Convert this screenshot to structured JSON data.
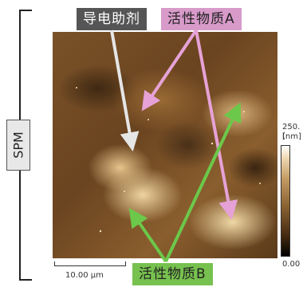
{
  "side_label": "SPM",
  "labels": {
    "conductive_agent": "导电助剂",
    "active_a": "活性物质A",
    "active_b": "活性物质B"
  },
  "colorbar": {
    "max_text": "250.(",
    "unit_text": "[nm]",
    "min_text": "0.00"
  },
  "scale_bar": {
    "text": "10.00 μm"
  },
  "colors": {
    "conductive_arrow": "#e6e6e6",
    "active_a_arrow": "#e6a2d6",
    "active_b_arrow": "#6cc84a"
  }
}
